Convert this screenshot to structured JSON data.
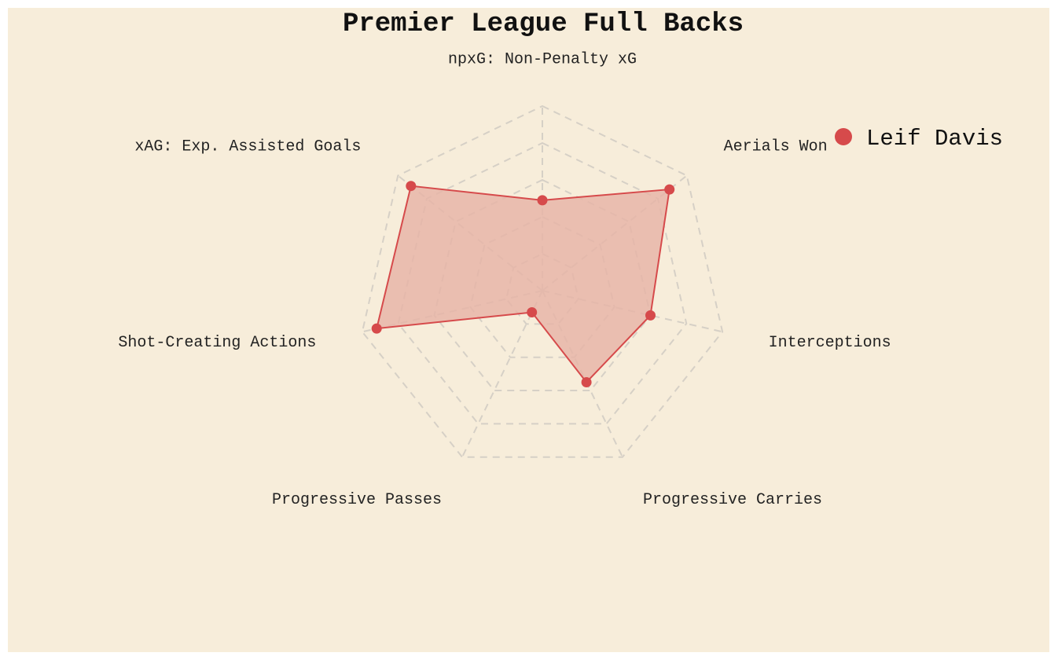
{
  "colors": {
    "background": "#f7edda",
    "series": "#d64a4b",
    "fill": "#e6b3a6",
    "grid": "#d6d0c6"
  },
  "chart_data": {
    "type": "radar",
    "title": "Premier League Full Backs",
    "axes": [
      "npxG: Non-Penalty xG",
      "Aerials Won",
      "Interceptions",
      "Progressive Carries",
      "Progressive Passes",
      "Shot-Creating Actions",
      "xAG: Exp. Assisted Goals"
    ],
    "range": [
      0,
      1
    ],
    "grid_levels": 5,
    "grid": true,
    "grid_style": "dashed",
    "legend_position": "top-right",
    "series": [
      {
        "name": "Leif Davis",
        "color": "#d64a4b",
        "values": [
          0.49,
          0.88,
          0.6,
          0.55,
          0.13,
          0.92,
          0.91
        ]
      }
    ]
  }
}
